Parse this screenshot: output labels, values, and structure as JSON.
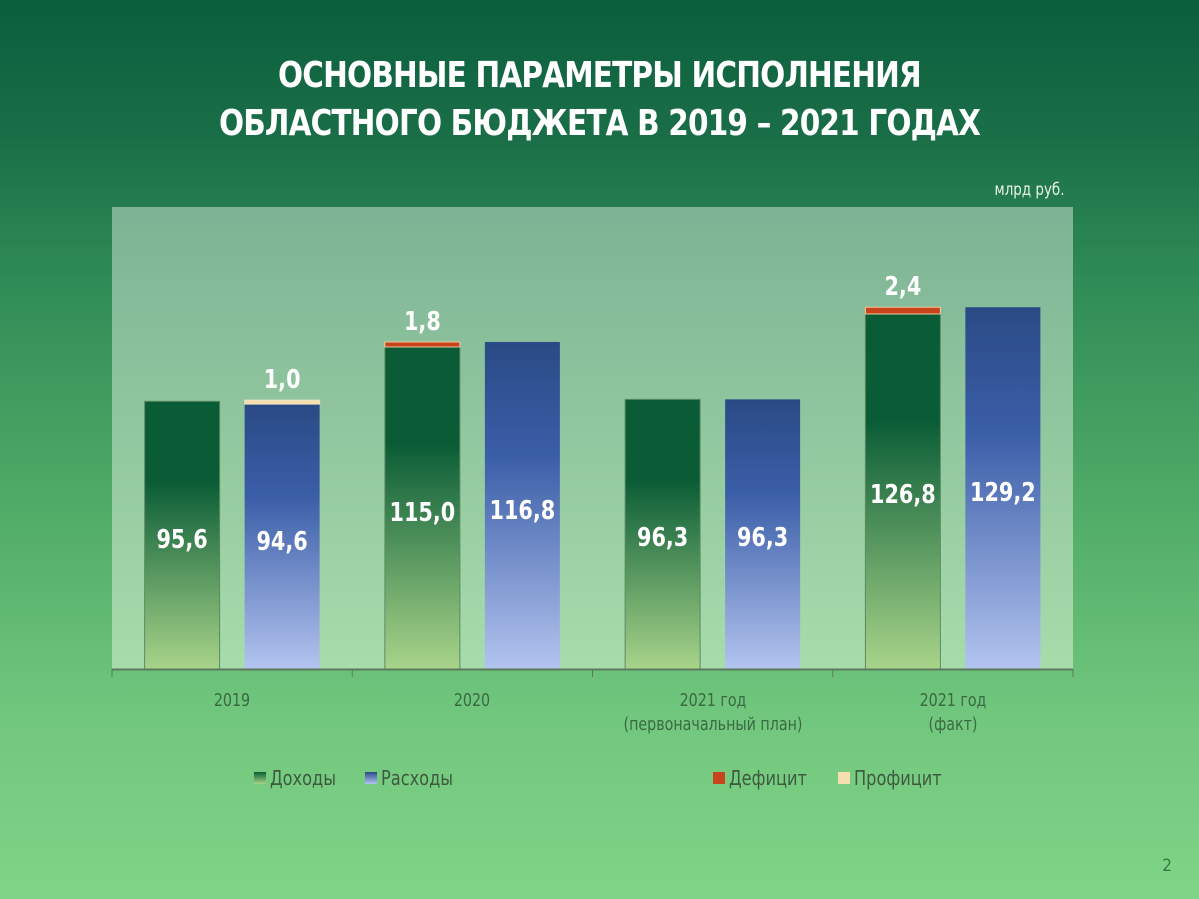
{
  "title_lines": [
    "ОСНОВНЫЕ ПАРАМЕТРЫ ИСПОЛНЕНИЯ",
    "ОБЛАСТНОГО БЮДЖЕТА В 2019 – 2021 ГОДАХ"
  ],
  "unit_label": "млрд руб.",
  "page_number": "2",
  "colors": {
    "income_top": "#0a5c36",
    "income_bottom": "#a8d48a",
    "expense_top": "#2a4a85",
    "expense_bottom": "#b3c4ef",
    "deficit": "#c8441c",
    "surplus": "#f5dfb0",
    "plot_top": "#7db394",
    "plot_bottom": "#a7dcab"
  },
  "chart_data": {
    "type": "bar",
    "title": "ОСНОВНЫЕ ПАРАМЕТРЫ ИСПОЛНЕНИЯ ОБЛАСТНОГО БЮДЖЕТА В 2019 – 2021 ГОДАХ",
    "ylabel": "млрд руб.",
    "ylim": [
      0,
      165
    ],
    "grid": false,
    "categories": [
      [
        "2019"
      ],
      [
        "2020"
      ],
      [
        "2021 год",
        "(первоначальный план)"
      ],
      [
        "2021 год",
        "(факт)"
      ]
    ],
    "series": [
      {
        "name": "Доходы",
        "values": [
          95.6,
          115.0,
          96.3,
          126.8
        ],
        "labels": [
          "95,6",
          "115,0",
          "96,3",
          "126,8"
        ]
      },
      {
        "name": "Расходы",
        "values": [
          94.6,
          116.8,
          96.3,
          129.2
        ],
        "labels": [
          "94,6",
          "116,8",
          "96,3",
          "129,2"
        ]
      }
    ],
    "balance": [
      {
        "category_index": 0,
        "type": "Профицит",
        "value": 1.0,
        "label": "1,0",
        "stacked_on": "Расходы"
      },
      {
        "category_index": 1,
        "type": "Дефицит",
        "value": 1.8,
        "label": "1,8",
        "stacked_on": "Доходы"
      },
      {
        "category_index": 3,
        "type": "Дефицит",
        "value": 2.4,
        "label": "2,4",
        "stacked_on": "Доходы"
      }
    ],
    "legend": [
      {
        "name": "Доходы",
        "key": "income"
      },
      {
        "name": "Расходы",
        "key": "expense"
      },
      {
        "name": "Дефицит",
        "key": "deficit"
      },
      {
        "name": "Профицит",
        "key": "surplus"
      }
    ],
    "legend_placement": "bottom"
  }
}
